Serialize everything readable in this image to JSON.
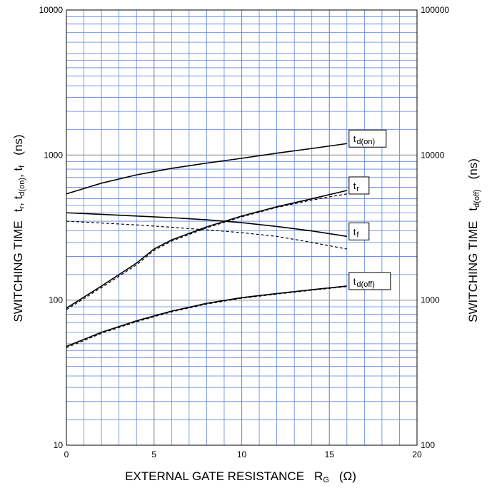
{
  "chart_data": {
    "type": "line",
    "title": "",
    "xlabel": {
      "main": "EXTERNAL GATE RESISTANCE",
      "symbol": "R",
      "sub": "G",
      "unit": "(Ω)"
    },
    "ylabel_left": {
      "main": "SWITCHING TIME",
      "symbols": "t_r, t_d(on), t_f",
      "unit": "(ns)"
    },
    "ylabel_right": {
      "main": "SWITCHING TIME",
      "symbol": "t_d(off)",
      "unit": "(ns)"
    },
    "xlim": [
      0,
      20
    ],
    "ylim_left": [
      10,
      10000
    ],
    "ylim_right": [
      100,
      100000
    ],
    "yscale": "log",
    "grid": true,
    "x_ticks": [
      "0",
      "5",
      "10",
      "15",
      "20"
    ],
    "y_left_ticks": [
      "10",
      "100",
      "1000",
      "10000"
    ],
    "y_right_ticks": [
      "100",
      "1000",
      "10000",
      "100000"
    ],
    "series": [
      {
        "name": "t_d(on)",
        "axis": "left",
        "style": "solid",
        "x": [
          0,
          2,
          4,
          6,
          8,
          10,
          12,
          14,
          16
        ],
        "y": [
          540,
          640,
          730,
          810,
          880,
          950,
          1030,
          1110,
          1200
        ]
      },
      {
        "name": "t_d(on)",
        "axis": "left",
        "style": "dashed",
        "x": [
          0,
          2,
          4,
          6,
          8,
          10,
          12,
          14,
          16
        ],
        "y": [
          540,
          640,
          730,
          810,
          880,
          950,
          1030,
          1110,
          1200
        ]
      },
      {
        "name": "t_r",
        "axis": "left",
        "style": "solid",
        "x": [
          0,
          2,
          4,
          5,
          6,
          8,
          10,
          12,
          14,
          16
        ],
        "y": [
          88,
          125,
          180,
          225,
          260,
          320,
          380,
          440,
          500,
          570
        ]
      },
      {
        "name": "t_r",
        "axis": "left",
        "style": "dashed",
        "x": [
          0,
          2,
          4,
          5,
          6,
          8,
          10,
          12,
          14,
          16
        ],
        "y": [
          86,
          122,
          175,
          220,
          255,
          315,
          375,
          435,
          490,
          540
        ]
      },
      {
        "name": "t_f",
        "axis": "left",
        "style": "solid",
        "x": [
          0,
          2,
          4,
          6,
          8,
          10,
          12,
          14,
          16
        ],
        "y": [
          400,
          390,
          380,
          370,
          358,
          342,
          322,
          300,
          275
        ]
      },
      {
        "name": "t_f",
        "axis": "left",
        "style": "dashed",
        "x": [
          0,
          2,
          4,
          6,
          8,
          10,
          12,
          14,
          16
        ],
        "y": [
          350,
          340,
          330,
          318,
          305,
          292,
          275,
          250,
          225
        ]
      },
      {
        "name": "t_d(off)",
        "axis": "right",
        "style": "solid",
        "x": [
          0,
          2,
          4,
          6,
          8,
          10,
          12,
          14,
          16
        ],
        "y": [
          480,
          600,
          720,
          840,
          950,
          1040,
          1110,
          1180,
          1250
        ]
      },
      {
        "name": "t_d(off)",
        "axis": "right",
        "style": "dashed",
        "x": [
          0,
          2,
          4,
          6,
          8,
          10,
          12,
          14,
          16
        ],
        "y": [
          470,
          590,
          710,
          830,
          940,
          1030,
          1100,
          1170,
          1240
        ]
      }
    ],
    "curve_labels": [
      {
        "main": "t",
        "sub": "d(on)",
        "target": 0
      },
      {
        "main": "t",
        "sub": "r",
        "target": 2
      },
      {
        "main": "t",
        "sub": "f",
        "target": 4
      },
      {
        "main": "t",
        "sub": "d(off)",
        "target": 6
      }
    ],
    "colors": {
      "grid_major": "#8f8f8f",
      "grid_minor": "#5b82e6",
      "curve": "#000000",
      "background": "#ffffff"
    }
  }
}
